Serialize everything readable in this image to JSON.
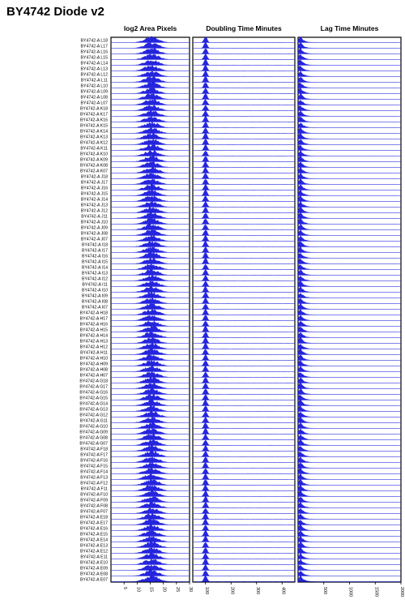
{
  "title": "BY4742 Diode v2",
  "row_prefix": "BY4742-A",
  "chart_data": {
    "type": "ridgeline",
    "rows": [
      "L18",
      "L17",
      "L16",
      "L15",
      "L14",
      "L13",
      "L12",
      "L11",
      "L10",
      "L09",
      "L08",
      "L07",
      "K18",
      "K17",
      "K16",
      "K15",
      "K14",
      "K13",
      "K12",
      "K11",
      "K10",
      "K09",
      "K08",
      "K07",
      "J18",
      "J17",
      "J16",
      "J15",
      "J14",
      "J13",
      "J12",
      "J11",
      "J10",
      "J09",
      "J08",
      "J07",
      "I18",
      "I17",
      "I16",
      "I15",
      "I14",
      "I13",
      "I12",
      "I11",
      "I10",
      "I09",
      "I08",
      "I07",
      "H18",
      "H17",
      "H16",
      "H15",
      "H14",
      "H13",
      "H12",
      "H11",
      "H10",
      "H09",
      "H08",
      "H07",
      "G18",
      "G17",
      "G16",
      "G15",
      "G14",
      "G13",
      "G12",
      "G11",
      "G10",
      "G09",
      "G08",
      "G07",
      "F18",
      "F17",
      "F16",
      "F15",
      "F14",
      "F13",
      "F12",
      "F11",
      "F10",
      "F09",
      "F08",
      "F07",
      "E18",
      "E17",
      "E16",
      "E15",
      "E14",
      "E13",
      "E12",
      "E11",
      "E10",
      "E09",
      "E08",
      "E07"
    ],
    "panels": [
      {
        "title": "log2 Area Pixels",
        "xlim": [
          0,
          30
        ],
        "ticks": [
          5,
          10,
          15,
          20,
          25,
          30
        ],
        "peak": 15.5,
        "spread": 2.6,
        "shape": "broad"
      },
      {
        "title": "Doubling Time Minutes",
        "xlim": [
          50,
          450
        ],
        "ticks": [
          100,
          200,
          300,
          400
        ],
        "peak": 100,
        "spread": 6,
        "shape": "spike"
      },
      {
        "title": "Lag Time Minutes",
        "xlim": [
          0,
          2000
        ],
        "ticks": [
          500,
          1000,
          1500,
          2000
        ],
        "peak": 50,
        "spread": 40,
        "shape": "decay"
      }
    ],
    "color": "#1a1adc"
  }
}
